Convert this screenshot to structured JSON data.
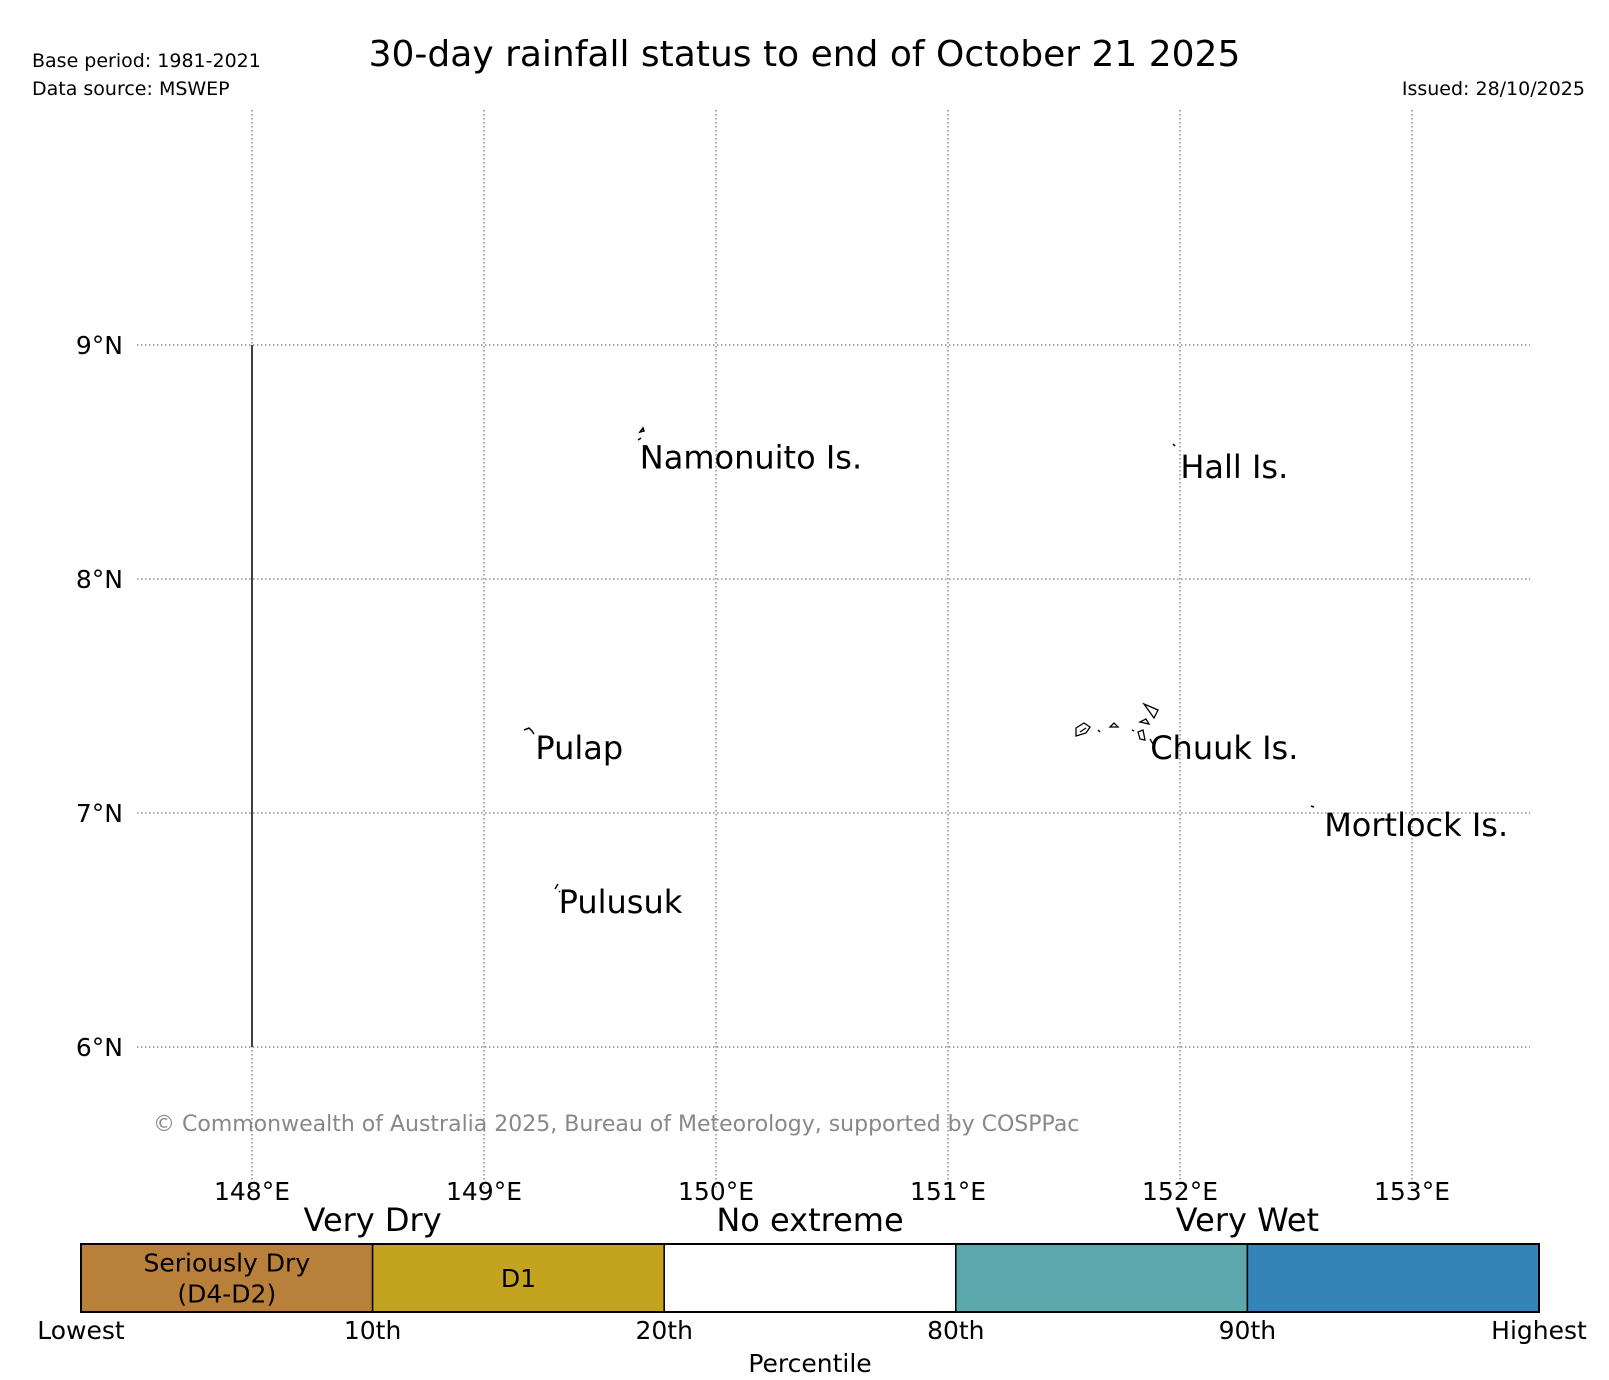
{
  "header": {
    "title": "30-day rainfall status to end of October 21 2025",
    "base_period": "Base period: 1981-2021",
    "data_source": "Data source: MSWEP",
    "issued": "Issued: 28/10/2025"
  },
  "map": {
    "lat_labels": [
      {
        "lat": 9,
        "label": "9°N"
      },
      {
        "lat": 8,
        "label": "8°N"
      },
      {
        "lat": 7,
        "label": "7°N"
      },
      {
        "lat": 6,
        "label": "6°N"
      }
    ],
    "lon_labels": [
      {
        "lon": 148,
        "label": "148°E"
      },
      {
        "lon": 149,
        "label": "149°E"
      },
      {
        "lon": 150,
        "label": "150°E"
      },
      {
        "lon": 151,
        "label": "151°E"
      },
      {
        "lon": 152,
        "label": "152°E"
      },
      {
        "lon": 153,
        "label": "153°E"
      }
    ],
    "boundary_line": {
      "lon": 148,
      "lat_from": 6,
      "lat_to": 9
    },
    "places": [
      {
        "name": "Namonuito Is.",
        "lon": 149.65,
        "lat": 8.57
      },
      {
        "name": "Hall Is.",
        "lon": 151.98,
        "lat": 8.53
      },
      {
        "name": "Pulap",
        "lon": 149.2,
        "lat": 7.33
      },
      {
        "name": "Chuuk Is.",
        "lon": 151.85,
        "lat": 7.33
      },
      {
        "name": "Mortlock Is.",
        "lon": 152.6,
        "lat": 7.0
      },
      {
        "name": "Pulusuk",
        "lon": 149.3,
        "lat": 6.67
      }
    ],
    "copyright": "© Commonwealth of Australia 2025, Bureau of Meteorology, supported by COSPPac"
  },
  "legend": {
    "categories": [
      "Very Dry",
      "No extreme",
      "Very Wet"
    ],
    "segments": [
      {
        "label_lines": [
          "Seriously Dry",
          "(D4-D2)"
        ],
        "color": "#b8803b"
      },
      {
        "label_lines": [
          "D1"
        ],
        "color": "#c4a41e"
      },
      {
        "label_lines": [],
        "color": "#ffffff"
      },
      {
        "label_lines": [],
        "color": "#5ba9ad"
      },
      {
        "label_lines": [],
        "color": "#3583b7"
      }
    ],
    "ticks": [
      "Lowest",
      "10th",
      "20th",
      "80th",
      "90th",
      "Highest"
    ],
    "axis_title": "Percentile"
  }
}
